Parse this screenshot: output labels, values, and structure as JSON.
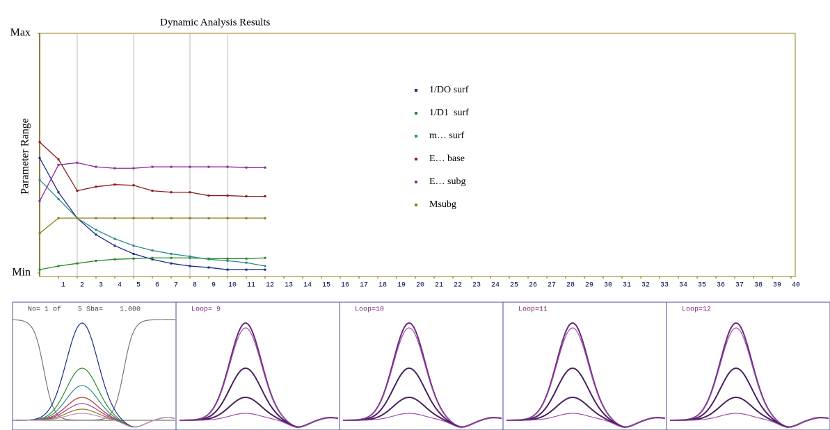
{
  "chart_data": {
    "type": "line",
    "title": "Dynamic Analysis Results",
    "ylabel": "Parameter Range",
    "x": [
      0,
      1,
      2,
      3,
      4,
      5,
      6,
      7,
      8,
      9,
      10,
      11,
      12
    ],
    "xlim": [
      0,
      40.22
    ],
    "xticks": [
      1,
      2,
      3,
      4,
      5,
      6,
      7,
      8,
      9,
      10,
      11,
      12,
      13,
      14,
      15,
      16,
      17,
      18,
      19,
      20,
      21,
      22,
      23,
      24,
      25,
      26,
      27,
      28,
      29,
      30,
      31,
      32,
      33,
      34,
      35,
      36,
      37,
      38,
      39,
      40
    ],
    "ylim": [
      0,
      1
    ],
    "yticks": [
      {
        "value": 0,
        "label": "Min"
      },
      {
        "value": 1,
        "label": "Max"
      }
    ],
    "grid_x": [
      2,
      5,
      8,
      10
    ],
    "series": [
      {
        "name": "1/DO surf",
        "color": "#1c2b8c",
        "values": [
          0.48,
          0.337,
          0.229,
          0.16,
          0.114,
          0.08,
          0.057,
          0.04,
          0.029,
          0.023,
          0.014,
          0.014,
          0.014
        ]
      },
      {
        "name": "1/D1  surf",
        "color": "#2a8a2a",
        "values": [
          0.014,
          0.029,
          0.04,
          0.051,
          0.057,
          0.06,
          0.063,
          0.063,
          0.063,
          0.06,
          0.06,
          0.06,
          0.063
        ]
      },
      {
        "name": "m… surf",
        "color": "#2a8a8a",
        "values": [
          0.389,
          0.309,
          0.229,
          0.18,
          0.143,
          0.114,
          0.094,
          0.08,
          0.069,
          0.057,
          0.051,
          0.043,
          0.029
        ]
      },
      {
        "name": "E… base",
        "color": "#8b1a1a",
        "values": [
          0.546,
          0.474,
          0.343,
          0.36,
          0.369,
          0.366,
          0.343,
          0.337,
          0.337,
          0.323,
          0.323,
          0.32,
          0.32
        ]
      },
      {
        "name": "E… subg",
        "color": "#8b2a9b",
        "values": [
          0.3,
          0.451,
          0.46,
          0.443,
          0.437,
          0.437,
          0.443,
          0.443,
          0.443,
          0.443,
          0.443,
          0.44,
          0.44
        ]
      },
      {
        "name": "Msubg",
        "color": "#8b7a1a",
        "values": [
          0.166,
          0.229,
          0.229,
          0.229,
          0.229,
          0.229,
          0.229,
          0.229,
          0.229,
          0.229,
          0.229,
          0.229,
          0.229
        ]
      }
    ]
  },
  "panels": [
    {
      "label": "No= 1 of    5 Sba=    1.000"
    },
    {
      "label": "Loop= 9"
    },
    {
      "label": "Loop=10"
    },
    {
      "label": "Loop=11"
    },
    {
      "label": "Loop=12"
    }
  ]
}
